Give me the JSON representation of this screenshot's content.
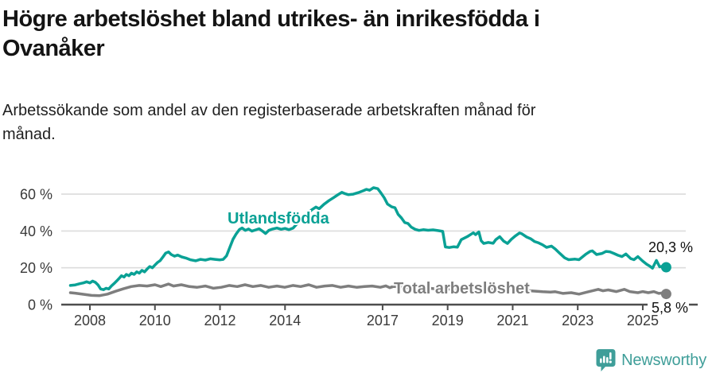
{
  "title": "Högre arbetslöshet bland utrikes- än inrikesfödda i Ovanåker",
  "subtitle": "Arbetssökande som andel av den registerbaserade arbetskraften månad för månad.",
  "footer": {
    "brand": "Newsworthy",
    "logo_color": "#3f9e99"
  },
  "colors": {
    "foreign_born_line": "#0aa195",
    "total_line": "#7e7e7e",
    "gridline": "#dcdcdc",
    "axis": "#4d4d4d",
    "axis_text": "#3a3a3a",
    "end_label_text": "#111111",
    "background": "#ffffff"
  },
  "chart_data": {
    "type": "line",
    "title": "Högre arbetslöshet bland utrikes- än inrikesfödda i Ovanåker",
    "subtitle": "Arbetssökande som andel av den registerbaserade arbetskraften månad för månad.",
    "xlabel": "",
    "ylabel": "",
    "unit": "%",
    "grid": true,
    "legend_position": "inline-labels",
    "xlim": [
      2007.3,
      2025.95
    ],
    "ylim": [
      0,
      66
    ],
    "y_ticks": [
      {
        "value": 0,
        "label": "0 %"
      },
      {
        "value": 20,
        "label": "20 %"
      },
      {
        "value": 40,
        "label": "40 %"
      },
      {
        "value": 60,
        "label": "60 %"
      }
    ],
    "x_ticks": [
      {
        "year": 2008,
        "label": "2008"
      },
      {
        "year": 2010,
        "label": "2010"
      },
      {
        "year": 2012,
        "label": "2012"
      },
      {
        "year": 2014,
        "label": "2014"
      },
      {
        "year": 2017,
        "label": "2017"
      },
      {
        "year": 2019,
        "label": "2019"
      },
      {
        "year": 2021,
        "label": "2021"
      },
      {
        "year": 2023,
        "label": "2023"
      },
      {
        "year": 2025,
        "label": "2025"
      }
    ],
    "series": [
      {
        "name": "Utlandsfödda",
        "color": "#0aa195",
        "end_label": "20,3 %",
        "end_value": 20.3,
        "data": [
          [
            2007.4,
            10.4
          ],
          [
            2007.55,
            10.7
          ],
          [
            2007.7,
            11.4
          ],
          [
            2007.8,
            11.8
          ],
          [
            2007.9,
            12.4
          ],
          [
            2008.0,
            11.8
          ],
          [
            2008.08,
            12.8
          ],
          [
            2008.17,
            12.1
          ],
          [
            2008.25,
            10.7
          ],
          [
            2008.33,
            8.5
          ],
          [
            2008.42,
            8.1
          ],
          [
            2008.5,
            8.9
          ],
          [
            2008.58,
            8.5
          ],
          [
            2008.66,
            10.1
          ],
          [
            2008.74,
            11.4
          ],
          [
            2008.82,
            12.8
          ],
          [
            2008.9,
            14.3
          ],
          [
            2008.97,
            15.7
          ],
          [
            2009.05,
            15.0
          ],
          [
            2009.12,
            16.4
          ],
          [
            2009.2,
            15.7
          ],
          [
            2009.28,
            17.1
          ],
          [
            2009.36,
            16.4
          ],
          [
            2009.44,
            17.8
          ],
          [
            2009.52,
            17.1
          ],
          [
            2009.6,
            18.6
          ],
          [
            2009.68,
            17.8
          ],
          [
            2009.76,
            19.3
          ],
          [
            2009.84,
            20.7
          ],
          [
            2009.92,
            20.0
          ],
          [
            2010.0,
            21.5
          ],
          [
            2010.08,
            22.9
          ],
          [
            2010.16,
            23.9
          ],
          [
            2010.25,
            26.0
          ],
          [
            2010.33,
            28.0
          ],
          [
            2010.42,
            28.6
          ],
          [
            2010.5,
            27.2
          ],
          [
            2010.6,
            26.3
          ],
          [
            2010.7,
            26.9
          ],
          [
            2010.82,
            25.9
          ],
          [
            2010.95,
            25.3
          ],
          [
            2011.1,
            24.3
          ],
          [
            2011.25,
            23.8
          ],
          [
            2011.4,
            24.6
          ],
          [
            2011.55,
            24.2
          ],
          [
            2011.7,
            24.9
          ],
          [
            2011.85,
            24.6
          ],
          [
            2012.0,
            24.3
          ],
          [
            2012.1,
            24.6
          ],
          [
            2012.2,
            26.5
          ],
          [
            2012.3,
            31.0
          ],
          [
            2012.4,
            35.5
          ],
          [
            2012.5,
            38.5
          ],
          [
            2012.6,
            40.8
          ],
          [
            2012.68,
            41.6
          ],
          [
            2012.78,
            40.3
          ],
          [
            2012.88,
            41.1
          ],
          [
            2012.98,
            39.9
          ],
          [
            2013.1,
            40.6
          ],
          [
            2013.2,
            41.2
          ],
          [
            2013.3,
            40.0
          ],
          [
            2013.4,
            38.6
          ],
          [
            2013.5,
            40.3
          ],
          [
            2013.62,
            41.1
          ],
          [
            2013.75,
            41.6
          ],
          [
            2013.88,
            40.9
          ],
          [
            2014.0,
            41.4
          ],
          [
            2014.12,
            40.7
          ],
          [
            2014.25,
            41.6
          ],
          [
            2014.4,
            44.5
          ],
          [
            2014.55,
            47.5
          ],
          [
            2014.7,
            49.5
          ],
          [
            2014.82,
            51.5
          ],
          [
            2014.95,
            53.0
          ],
          [
            2015.05,
            52.1
          ],
          [
            2015.2,
            54.5
          ],
          [
            2015.35,
            56.5
          ],
          [
            2015.5,
            58.2
          ],
          [
            2015.62,
            59.6
          ],
          [
            2015.75,
            61.0
          ],
          [
            2015.85,
            60.2
          ],
          [
            2015.95,
            59.7
          ],
          [
            2016.1,
            60.0
          ],
          [
            2016.25,
            60.8
          ],
          [
            2016.4,
            61.8
          ],
          [
            2016.5,
            62.6
          ],
          [
            2016.6,
            62.1
          ],
          [
            2016.72,
            63.5
          ],
          [
            2016.85,
            63.0
          ],
          [
            2016.95,
            60.6
          ],
          [
            2017.05,
            58.0
          ],
          [
            2017.15,
            54.6
          ],
          [
            2017.28,
            53.1
          ],
          [
            2017.38,
            52.6
          ],
          [
            2017.48,
            49.0
          ],
          [
            2017.58,
            47.1
          ],
          [
            2017.68,
            44.6
          ],
          [
            2017.78,
            44.1
          ],
          [
            2017.88,
            42.1
          ],
          [
            2018.0,
            40.9
          ],
          [
            2018.12,
            40.3
          ],
          [
            2018.25,
            40.7
          ],
          [
            2018.4,
            40.4
          ],
          [
            2018.55,
            40.6
          ],
          [
            2018.7,
            40.2
          ],
          [
            2018.85,
            39.8
          ],
          [
            2018.93,
            31.3
          ],
          [
            2019.05,
            31.0
          ],
          [
            2019.18,
            31.4
          ],
          [
            2019.3,
            31.2
          ],
          [
            2019.42,
            35.3
          ],
          [
            2019.6,
            36.9
          ],
          [
            2019.79,
            39.0
          ],
          [
            2019.86,
            38.0
          ],
          [
            2019.96,
            39.5
          ],
          [
            2020.03,
            34.7
          ],
          [
            2020.11,
            33.2
          ],
          [
            2020.25,
            33.8
          ],
          [
            2020.4,
            33.3
          ],
          [
            2020.48,
            35.3
          ],
          [
            2020.6,
            36.9
          ],
          [
            2020.72,
            34.5
          ],
          [
            2020.84,
            33.2
          ],
          [
            2020.96,
            35.5
          ],
          [
            2021.09,
            37.4
          ],
          [
            2021.21,
            38.9
          ],
          [
            2021.28,
            38.5
          ],
          [
            2021.43,
            36.7
          ],
          [
            2021.55,
            35.8
          ],
          [
            2021.67,
            34.3
          ],
          [
            2021.8,
            33.5
          ],
          [
            2021.92,
            32.5
          ],
          [
            2022.04,
            31.1
          ],
          [
            2022.19,
            31.8
          ],
          [
            2022.31,
            30.2
          ],
          [
            2022.45,
            27.8
          ],
          [
            2022.6,
            25.4
          ],
          [
            2022.72,
            24.4
          ],
          [
            2022.92,
            24.7
          ],
          [
            2023.04,
            24.4
          ],
          [
            2023.26,
            27.5
          ],
          [
            2023.38,
            28.9
          ],
          [
            2023.45,
            29.2
          ],
          [
            2023.58,
            27.2
          ],
          [
            2023.75,
            27.8
          ],
          [
            2023.87,
            28.9
          ],
          [
            2023.99,
            28.7
          ],
          [
            2024.11,
            27.8
          ],
          [
            2024.24,
            26.8
          ],
          [
            2024.36,
            26.1
          ],
          [
            2024.48,
            27.5
          ],
          [
            2024.63,
            25.0
          ],
          [
            2024.73,
            24.4
          ],
          [
            2024.85,
            26.1
          ],
          [
            2025.0,
            23.6
          ],
          [
            2025.12,
            21.9
          ],
          [
            2025.22,
            20.8
          ],
          [
            2025.3,
            19.8
          ],
          [
            2025.42,
            24.0
          ],
          [
            2025.52,
            20.5
          ],
          [
            2025.62,
            20.9
          ],
          [
            2025.72,
            20.3
          ]
        ]
      },
      {
        "name": "Total arbetslöshet",
        "color": "#7e7e7e",
        "end_label": "5,8 %",
        "end_value": 5.8,
        "data": [
          [
            2007.4,
            6.5
          ],
          [
            2007.55,
            6.2
          ],
          [
            2007.8,
            5.6
          ],
          [
            2008.05,
            5.0
          ],
          [
            2008.3,
            4.9
          ],
          [
            2008.54,
            5.7
          ],
          [
            2008.78,
            7.2
          ],
          [
            2009.03,
            8.6
          ],
          [
            2009.27,
            9.8
          ],
          [
            2009.52,
            10.4
          ],
          [
            2009.76,
            10.1
          ],
          [
            2010.0,
            10.8
          ],
          [
            2010.18,
            9.8
          ],
          [
            2010.42,
            11.2
          ],
          [
            2010.57,
            10.1
          ],
          [
            2010.81,
            10.8
          ],
          [
            2011.06,
            9.8
          ],
          [
            2011.3,
            9.4
          ],
          [
            2011.55,
            10.1
          ],
          [
            2011.8,
            8.9
          ],
          [
            2012.04,
            9.4
          ],
          [
            2012.28,
            10.4
          ],
          [
            2012.53,
            9.8
          ],
          [
            2012.77,
            10.8
          ],
          [
            2013.01,
            9.8
          ],
          [
            2013.26,
            10.4
          ],
          [
            2013.5,
            9.4
          ],
          [
            2013.75,
            10.1
          ],
          [
            2013.99,
            9.4
          ],
          [
            2014.24,
            10.4
          ],
          [
            2014.48,
            9.8
          ],
          [
            2014.73,
            10.8
          ],
          [
            2014.97,
            9.4
          ],
          [
            2015.22,
            10.1
          ],
          [
            2015.46,
            10.4
          ],
          [
            2015.71,
            9.4
          ],
          [
            2015.95,
            10.1
          ],
          [
            2016.2,
            9.4
          ],
          [
            2016.44,
            9.8
          ],
          [
            2016.68,
            10.1
          ],
          [
            2016.93,
            9.4
          ],
          [
            2017.1,
            10.2
          ],
          [
            2017.22,
            9.2
          ],
          [
            2017.34,
            9.9
          ],
          [
            2017.71,
            9.3
          ],
          [
            2018.08,
            8.6
          ],
          [
            2018.44,
            8.9
          ],
          [
            2018.81,
            8.2
          ],
          [
            2019.18,
            8.5
          ],
          [
            2019.54,
            7.8
          ],
          [
            2019.91,
            7.6
          ],
          [
            2020.21,
            8.8
          ],
          [
            2020.52,
            8.4
          ],
          [
            2020.89,
            8.6
          ],
          [
            2021.26,
            8.0
          ],
          [
            2021.62,
            7.4
          ],
          [
            2021.92,
            7.0
          ],
          [
            2022.16,
            6.8
          ],
          [
            2022.31,
            7.0
          ],
          [
            2022.55,
            6.1
          ],
          [
            2022.8,
            6.5
          ],
          [
            2023.04,
            5.7
          ],
          [
            2023.28,
            6.8
          ],
          [
            2023.63,
            8.3
          ],
          [
            2023.77,
            7.5
          ],
          [
            2023.94,
            8.0
          ],
          [
            2024.19,
            7.1
          ],
          [
            2024.43,
            8.3
          ],
          [
            2024.6,
            7.1
          ],
          [
            2024.85,
            6.5
          ],
          [
            2025.0,
            7.1
          ],
          [
            2025.17,
            6.5
          ],
          [
            2025.34,
            7.1
          ],
          [
            2025.49,
            6.1
          ],
          [
            2025.6,
            6.3
          ],
          [
            2025.72,
            5.8
          ]
        ]
      }
    ]
  }
}
